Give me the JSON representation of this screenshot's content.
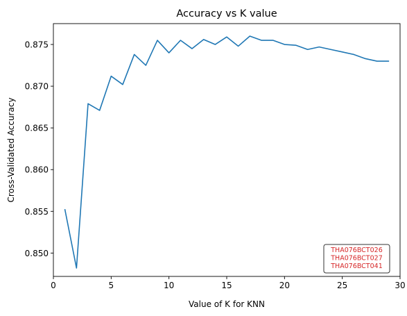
{
  "chart_data": {
    "type": "line",
    "title": "Accuracy vs K value",
    "xlabel": "Value of K for KNN",
    "ylabel": "Cross-Validated Accuracy",
    "xlim": [
      0,
      30
    ],
    "ylim": [
      0.8472,
      0.8775
    ],
    "xticks": [
      0,
      5,
      10,
      15,
      20,
      25,
      30
    ],
    "xtick_labels": [
      "0",
      "5",
      "10",
      "15",
      "20",
      "25",
      "30"
    ],
    "yticks": [
      0.85,
      0.855,
      0.86,
      0.865,
      0.87,
      0.875
    ],
    "ytick_labels": [
      "0.850",
      "0.855",
      "0.860",
      "0.865",
      "0.870",
      "0.875"
    ],
    "grid": false,
    "legend": "none",
    "series": [
      {
        "color": "#1f77b4",
        "x": [
          1,
          2,
          3,
          4,
          5,
          6,
          7,
          8,
          9,
          10,
          11,
          12,
          13,
          14,
          15,
          16,
          17,
          18,
          19,
          20,
          21,
          22,
          23,
          24,
          25,
          26,
          27,
          28,
          29
        ],
        "values": [
          0.8552,
          0.8482,
          0.8679,
          0.8671,
          0.8712,
          0.8702,
          0.8738,
          0.8725,
          0.8755,
          0.874,
          0.8755,
          0.8745,
          0.8756,
          0.875,
          0.8759,
          0.8748,
          0.876,
          0.8755,
          0.8755,
          0.875,
          0.8749,
          0.8744,
          0.8747,
          0.8744,
          0.8741,
          0.8738,
          0.8733,
          0.873,
          0.873
        ]
      }
    ],
    "annotation": {
      "lines": [
        "THA076BCT026",
        "THA076BCT027",
        "THA076BCT041"
      ],
      "text_color": "#d62728",
      "border_color": "#333333"
    }
  }
}
